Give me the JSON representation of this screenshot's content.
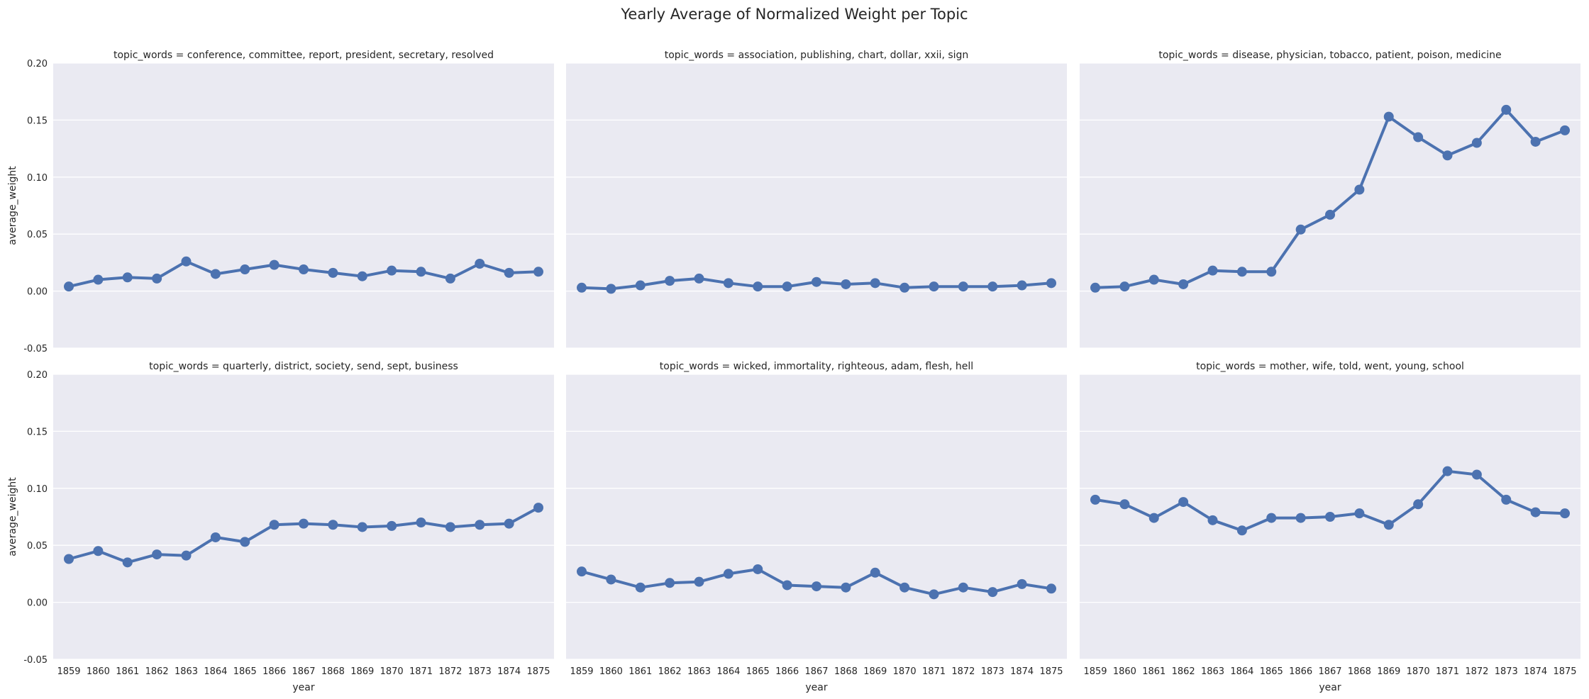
{
  "chart_data": {
    "type": "line",
    "title": "Yearly Average of Normalized Weight per Topic",
    "xlabel": "year",
    "ylabel": "average_weight",
    "ylim": [
      -0.05,
      0.2
    ],
    "y_ticks": [
      "-0.05",
      "0.00",
      "0.05",
      "0.10",
      "0.15",
      "0.20"
    ],
    "y_tick_values": [
      -0.05,
      0.0,
      0.05,
      0.1,
      0.15,
      0.2
    ],
    "grid": true,
    "x": [
      "1859",
      "1860",
      "1861",
      "1862",
      "1863",
      "1864",
      "1865",
      "1866",
      "1867",
      "1868",
      "1869",
      "1870",
      "1871",
      "1872",
      "1873",
      "1874",
      "1875"
    ],
    "colors": {
      "series": "#4c72b0",
      "panel_background": "#eaeaf2",
      "grid": "#ffffff"
    },
    "facets": [
      {
        "title": "topic_words = conference, committee, report, president, secretary, resolved",
        "values": [
          0.004,
          0.01,
          0.012,
          0.011,
          0.026,
          0.015,
          0.019,
          0.023,
          0.019,
          0.016,
          0.013,
          0.018,
          0.017,
          0.011,
          0.024,
          0.016,
          0.017
        ]
      },
      {
        "title": "topic_words = association, publishing, chart, dollar, xxii, sign",
        "values": [
          0.003,
          0.002,
          0.005,
          0.009,
          0.011,
          0.007,
          0.004,
          0.004,
          0.008,
          0.006,
          0.007,
          0.003,
          0.004,
          0.004,
          0.004,
          0.005,
          0.007
        ]
      },
      {
        "title": "topic_words = disease, physician, tobacco, patient, poison, medicine",
        "values": [
          0.003,
          0.004,
          0.01,
          0.006,
          0.018,
          0.017,
          0.017,
          0.054,
          0.067,
          0.089,
          0.153,
          0.135,
          0.119,
          0.13,
          0.159,
          0.131,
          0.141
        ]
      },
      {
        "title": "topic_words = quarterly, district, society, send, sept, business",
        "values": [
          0.038,
          0.045,
          0.035,
          0.042,
          0.041,
          0.057,
          0.053,
          0.068,
          0.069,
          0.068,
          0.066,
          0.067,
          0.07,
          0.066,
          0.068,
          0.069,
          0.083
        ]
      },
      {
        "title": "topic_words = wicked, immortality, righteous, adam, flesh, hell",
        "values": [
          0.027,
          0.02,
          0.013,
          0.017,
          0.018,
          0.025,
          0.029,
          0.015,
          0.014,
          0.013,
          0.026,
          0.013,
          0.007,
          0.013,
          0.009,
          0.016,
          0.012
        ]
      },
      {
        "title": "topic_words = mother, wife, told, went, young, school",
        "values": [
          0.09,
          0.086,
          0.074,
          0.088,
          0.072,
          0.063,
          0.074,
          0.074,
          0.075,
          0.078,
          0.068,
          0.086,
          0.115,
          0.112,
          0.09,
          0.079,
          0.078
        ]
      }
    ]
  }
}
